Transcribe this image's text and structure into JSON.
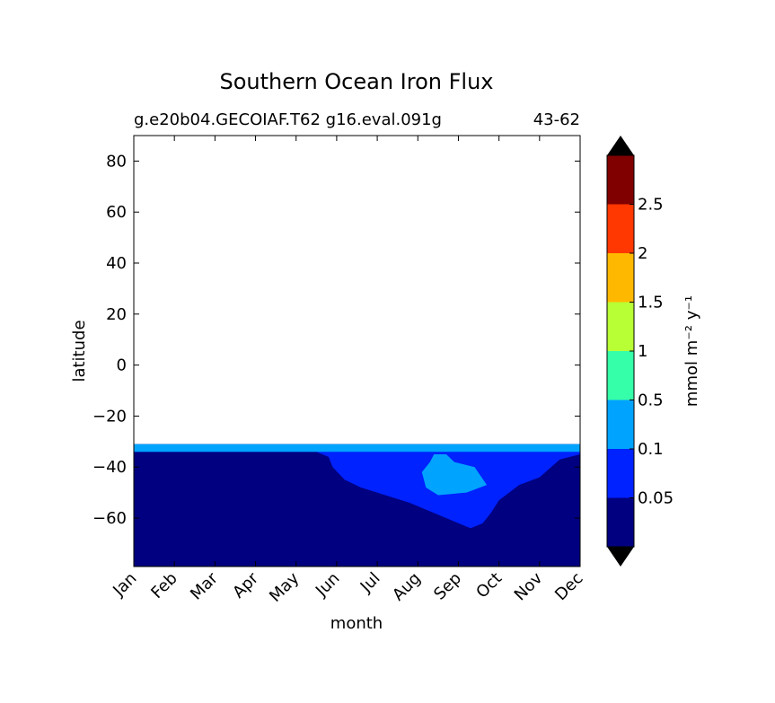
{
  "chart_data": {
    "type": "heatmap",
    "title": "Southern Ocean Iron Flux",
    "subtitle_left": "g.e20b04.GECOIAF.T62 g16.eval.091g",
    "subtitle_right": "43-62",
    "xlabel": "month",
    "ylabel": "latitude",
    "x_categories": [
      "Jan",
      "Feb",
      "Mar",
      "Apr",
      "May",
      "Jun",
      "Jul",
      "Aug",
      "Sep",
      "Oct",
      "Nov",
      "Dec"
    ],
    "y_ticks": [
      80,
      60,
      40,
      20,
      0,
      -20,
      -40,
      -60
    ],
    "ylim": [
      -79,
      90
    ],
    "data_lat_range": [
      -79,
      -31
    ],
    "colorbar": {
      "label": "mmol m⁻² y⁻¹",
      "levels": [
        "0.05",
        "0.1",
        "0.5",
        "1",
        "1.5",
        "2",
        "2.5"
      ],
      "colors": [
        "#000080",
        "#0022ff",
        "#00a4ff",
        "#36ffa9",
        "#b8ff36",
        "#ffb800",
        "#ff3700",
        "#800000"
      ],
      "extend": "both",
      "under_color": "#000000",
      "over_color": "#000000"
    },
    "bands": [
      {
        "level_index": 1,
        "description": "0.05-0.1 band",
        "points": [
          [
            0,
            -32
          ],
          [
            11,
            -32
          ],
          [
            11,
            -35
          ],
          [
            10.5,
            -37
          ],
          [
            10,
            -44
          ],
          [
            9.5,
            -47
          ],
          [
            9,
            -53
          ],
          [
            8.8,
            -58
          ],
          [
            8.6,
            -62
          ],
          [
            8.3,
            -64
          ],
          [
            8.0,
            -62
          ],
          [
            7.4,
            -58
          ],
          [
            6.8,
            -54
          ],
          [
            6.2,
            -51
          ],
          [
            5.6,
            -48
          ],
          [
            5.2,
            -45
          ],
          [
            4.9,
            -40
          ],
          [
            4.8,
            -36
          ],
          [
            4.5,
            -34
          ],
          [
            0,
            -34
          ]
        ]
      },
      {
        "level_index": 2,
        "description": "0.1-0.5 band (edge)",
        "points": [
          [
            0,
            -31
          ],
          [
            11,
            -31
          ],
          [
            11,
            -34
          ],
          [
            0,
            -34
          ]
        ]
      },
      {
        "level_index": 2,
        "description": "0.1-0.5 patch (Sep)",
        "points": [
          [
            7.4,
            -35
          ],
          [
            7.7,
            -35
          ],
          [
            7.9,
            -38
          ],
          [
            8.4,
            -40
          ],
          [
            8.7,
            -47
          ],
          [
            8.2,
            -50
          ],
          [
            7.5,
            -51
          ],
          [
            7.2,
            -48
          ],
          [
            7.1,
            -42
          ],
          [
            7.3,
            -38
          ]
        ]
      }
    ]
  }
}
